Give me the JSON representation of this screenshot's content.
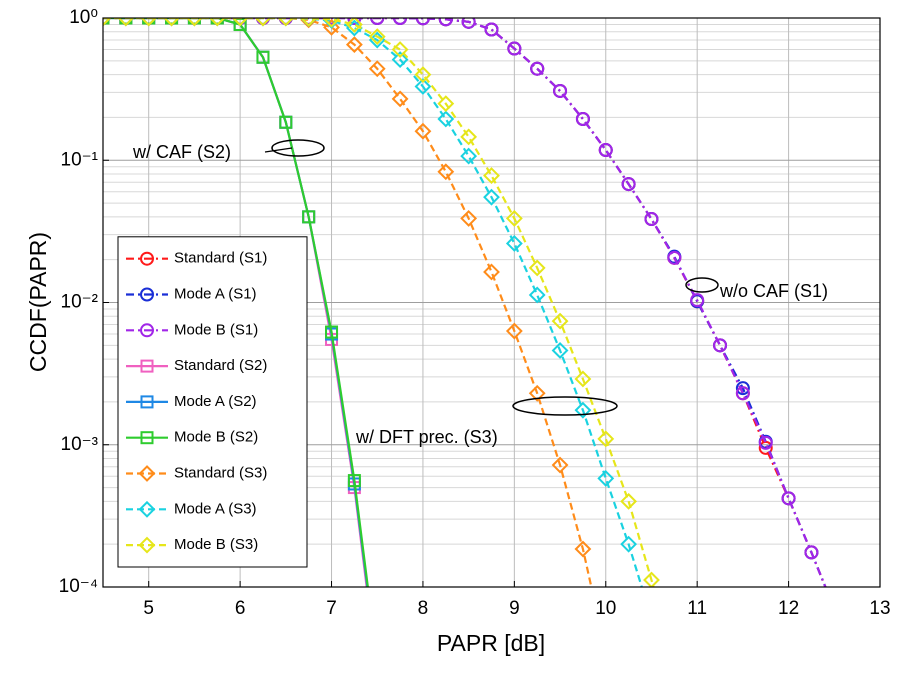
{
  "chart_data": {
    "type": "line",
    "xlabel": "PAPR [dB]",
    "ylabel": "CCDF(PAPR)",
    "x": [
      4.5,
      4.75,
      5,
      5.25,
      5.5,
      5.75,
      6,
      6.25,
      6.5,
      6.75,
      7,
      7.25,
      7.5,
      7.75,
      8,
      8.25,
      8.5,
      8.75,
      9,
      9.25,
      9.5,
      9.75,
      10,
      10.25,
      10.5,
      10.75,
      11,
      11.25,
      11.5,
      11.75,
      12,
      12.25,
      12.5
    ],
    "series": [
      {
        "name": "Standard (S1)",
        "color": "#ff1a1a",
        "marker": "circle",
        "linestyle": "dashdot",
        "values": [
          1,
          1,
          1,
          1,
          1,
          1,
          1,
          1,
          1,
          1,
          1,
          1,
          1,
          1,
          0.995,
          0.98,
          0.94,
          0.83,
          0.61,
          0.44,
          0.307,
          0.195,
          0.118,
          0.068,
          0.0386,
          0.0206,
          0.0102,
          0.005,
          0.0023,
          0.00095,
          0.00042,
          0.000175,
          7e-05
        ]
      },
      {
        "name": "Mode A (S1)",
        "color": "#1a2fd6",
        "marker": "circle",
        "linestyle": "dashdot",
        "values": [
          1,
          1,
          1,
          1,
          1,
          1,
          1,
          1,
          1,
          1,
          1,
          1,
          1,
          1,
          0.995,
          0.98,
          0.94,
          0.83,
          0.61,
          0.44,
          0.307,
          0.195,
          0.118,
          0.068,
          0.0386,
          0.021,
          0.0102,
          0.005,
          0.0025,
          0.00105,
          0.00042,
          0.000175,
          7e-05
        ]
      },
      {
        "name": "Mode B (S1)",
        "color": "#a126e8",
        "marker": "circle",
        "linestyle": "dashdot",
        "values": [
          1,
          1,
          1,
          1,
          1,
          1,
          1,
          1,
          1,
          1,
          1,
          1,
          1,
          1,
          0.995,
          0.98,
          0.94,
          0.83,
          0.61,
          0.44,
          0.307,
          0.195,
          0.118,
          0.068,
          0.0386,
          0.0206,
          0.0104,
          0.005,
          0.0023,
          0.00103,
          0.00042,
          0.000175,
          7e-05
        ]
      },
      {
        "name": "Standard (S2)",
        "color": "#f060c0",
        "marker": "square",
        "linestyle": "solid",
        "values": [
          1,
          1,
          1,
          1,
          1,
          1,
          0.9,
          0.53,
          0.185,
          0.04,
          0.0055,
          0.0005,
          2.5e-05,
          null,
          null,
          null,
          null,
          null,
          null,
          null,
          null,
          null,
          null,
          null,
          null,
          null,
          null,
          null,
          null,
          null,
          null,
          null,
          null
        ]
      },
      {
        "name": "Mode A (S2)",
        "color": "#1e88e5",
        "marker": "square",
        "linestyle": "solid",
        "values": [
          1,
          1,
          1,
          1,
          1,
          1,
          0.9,
          0.53,
          0.185,
          0.04,
          0.006,
          0.00053,
          2.8e-05,
          null,
          null,
          null,
          null,
          null,
          null,
          null,
          null,
          null,
          null,
          null,
          null,
          null,
          null,
          null,
          null,
          null,
          null,
          null,
          null
        ]
      },
      {
        "name": "Mode B (S2)",
        "color": "#2ecc2e",
        "marker": "square",
        "linestyle": "solid",
        "values": [
          1,
          1,
          1,
          1,
          1,
          1,
          0.9,
          0.53,
          0.185,
          0.04,
          0.0062,
          0.00056,
          3e-05,
          null,
          null,
          null,
          null,
          null,
          null,
          null,
          null,
          null,
          null,
          null,
          null,
          null,
          null,
          null,
          null,
          null,
          null,
          null,
          null
        ]
      },
      {
        "name": "Standard (S3)",
        "color": "#ff8c1a",
        "marker": "diamond",
        "linestyle": "dashed",
        "values": [
          1,
          1,
          1,
          1,
          1,
          1,
          1,
          1,
          1,
          0.97,
          0.86,
          0.65,
          0.44,
          0.27,
          0.16,
          0.083,
          0.039,
          0.0164,
          0.0063,
          0.0023,
          0.00072,
          0.000185,
          3.5e-05,
          null,
          null,
          null,
          null,
          null,
          null,
          null,
          null,
          null,
          null
        ]
      },
      {
        "name": "Mode A (S3)",
        "color": "#1ad2e0",
        "marker": "diamond",
        "linestyle": "dashed",
        "values": [
          1,
          1,
          1,
          1,
          1,
          1,
          1,
          1,
          1,
          0.99,
          0.96,
          0.85,
          0.7,
          0.51,
          0.33,
          0.195,
          0.107,
          0.055,
          0.026,
          0.0113,
          0.0046,
          0.00175,
          0.00058,
          0.0002,
          6e-05,
          null,
          null,
          null,
          null,
          null,
          null,
          null,
          null
        ]
      },
      {
        "name": "Mode B (S3)",
        "color": "#e6e61a",
        "marker": "diamond",
        "linestyle": "dashed",
        "values": [
          1,
          1,
          1,
          1,
          1,
          1,
          1,
          1,
          1,
          0.995,
          0.98,
          0.9,
          0.74,
          0.6,
          0.4,
          0.25,
          0.146,
          0.078,
          0.039,
          0.0175,
          0.0074,
          0.0029,
          0.0011,
          0.0004,
          0.000112,
          3e-05,
          null,
          null,
          null,
          null,
          null,
          null,
          null
        ]
      }
    ],
    "xlim": [
      4.5,
      13
    ],
    "xticks": [
      5,
      6,
      7,
      8,
      9,
      10,
      11,
      12,
      13
    ],
    "ylim": [
      0.0001,
      1
    ],
    "log_y": true,
    "yticks": [
      {
        "value": 1,
        "label": "10⁰"
      },
      {
        "value": 0.1,
        "label": "10⁻¹"
      },
      {
        "value": 0.01,
        "label": "10⁻²"
      },
      {
        "value": 0.001,
        "label": "10⁻³"
      },
      {
        "value": 0.0001,
        "label": "10⁻⁴"
      }
    ],
    "grid": true,
    "minor_grid": true,
    "legend": "lower left",
    "annotations": [
      "w/ CAF (S2)",
      "w/o CAF (S1)",
      "w/ DFT prec. (S3)"
    ]
  }
}
